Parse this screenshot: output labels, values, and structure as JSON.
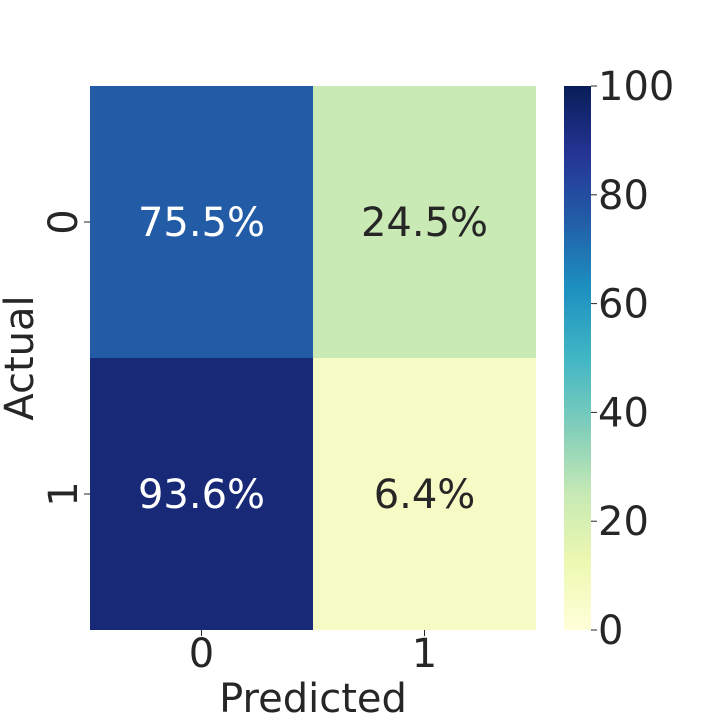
{
  "chart_data": {
    "type": "heatmap",
    "title": "",
    "xlabel": "Predicted",
    "ylabel": "Actual",
    "x_categories": [
      "0",
      "1"
    ],
    "y_categories": [
      "0",
      "1"
    ],
    "values": [
      [
        75.5,
        24.5
      ],
      [
        93.6,
        6.4
      ]
    ],
    "cell_labels": [
      [
        "75.5%",
        "24.5%"
      ],
      [
        "93.6%",
        "6.4%"
      ]
    ],
    "colorbar": {
      "min": 0,
      "max": 100,
      "ticks": [
        "0",
        "20",
        "40",
        "60",
        "80",
        "100"
      ],
      "colormap": "YlGnBu"
    },
    "colors": {
      "low_text": "#262626",
      "high_text": "#ffffff"
    }
  }
}
